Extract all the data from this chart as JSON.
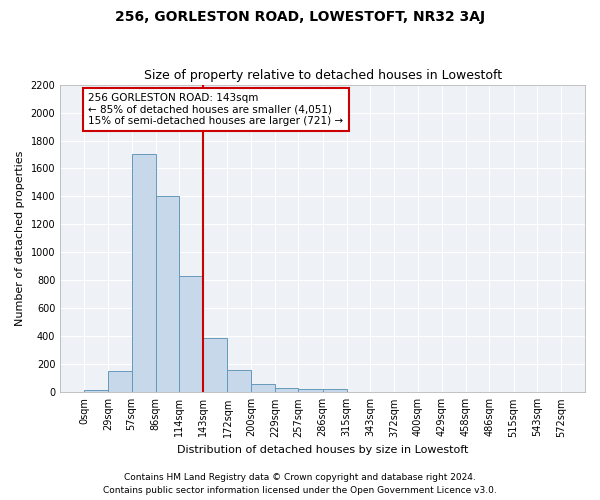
{
  "title": "256, GORLESTON ROAD, LOWESTOFT, NR32 3AJ",
  "subtitle": "Size of property relative to detached houses in Lowestoft",
  "xlabel": "Distribution of detached houses by size in Lowestoft",
  "ylabel": "Number of detached properties",
  "bar_color": "#c8d8eb",
  "bar_edge_color": "#6699bb",
  "background_color": "#eef2f7",
  "grid_color": "#ffffff",
  "vline_x": 143,
  "vline_color": "#cc0000",
  "annotation_text": "256 GORLESTON ROAD: 143sqm\n← 85% of detached houses are smaller (4,051)\n15% of semi-detached houses are larger (721) →",
  "annotation_box_color": "#ffffff",
  "annotation_box_edge": "#cc0000",
  "footer1": "Contains HM Land Registry data © Crown copyright and database right 2024.",
  "footer2": "Contains public sector information licensed under the Open Government Licence v3.0.",
  "bin_edges": [
    0,
    29,
    57,
    86,
    114,
    143,
    172,
    200,
    229,
    257,
    286,
    315,
    343,
    372,
    400,
    429,
    458,
    486,
    515,
    543,
    572
  ],
  "bar_heights": [
    20,
    150,
    1700,
    1400,
    830,
    390,
    160,
    60,
    30,
    25,
    25,
    0,
    0,
    0,
    0,
    0,
    0,
    0,
    0,
    0
  ],
  "ylim": [
    0,
    2200
  ],
  "yticks": [
    0,
    200,
    400,
    600,
    800,
    1000,
    1200,
    1400,
    1600,
    1800,
    2000,
    2200
  ],
  "title_fontsize": 10,
  "subtitle_fontsize": 9,
  "axis_label_fontsize": 8,
  "tick_fontsize": 7,
  "annotation_fontsize": 7.5,
  "footer_fontsize": 6.5
}
